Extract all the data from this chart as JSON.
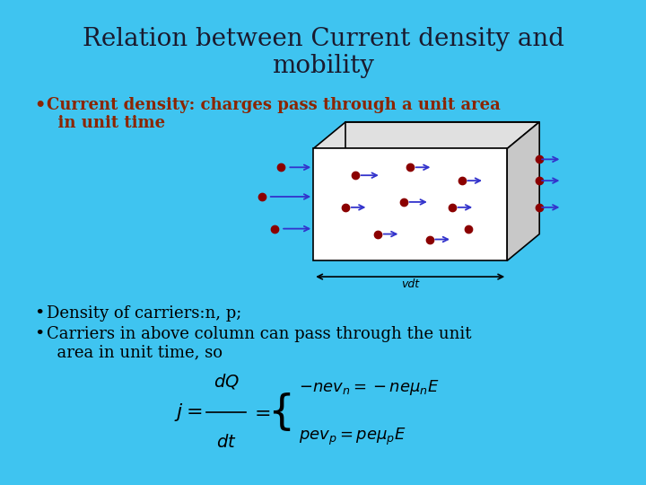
{
  "background_color": "#3FC4F0",
  "title_line1": "Relation between Current density and",
  "title_line2": "mobility",
  "title_fontsize": 20,
  "title_color": "#1a1a2e",
  "bullet1_text_line1": "Current density: charges pass through a unit area",
  "bullet1_text_line2": "  in unit time",
  "bullet1_color": "#8B2500",
  "bullet1_fontsize": 13,
  "bullet2_text": "Density of carriers:n, p;",
  "bullet3_line1": "Carriers in above column can pass through the unit",
  "bullet3_line2": "  area in unit time, so",
  "bullet_color": "#000000",
  "bullet_fontsize": 13,
  "diagram_bg": "#87CEEB",
  "box_face": "white",
  "box_top": "#d0d0d0",
  "box_right": "#c0c0c0"
}
